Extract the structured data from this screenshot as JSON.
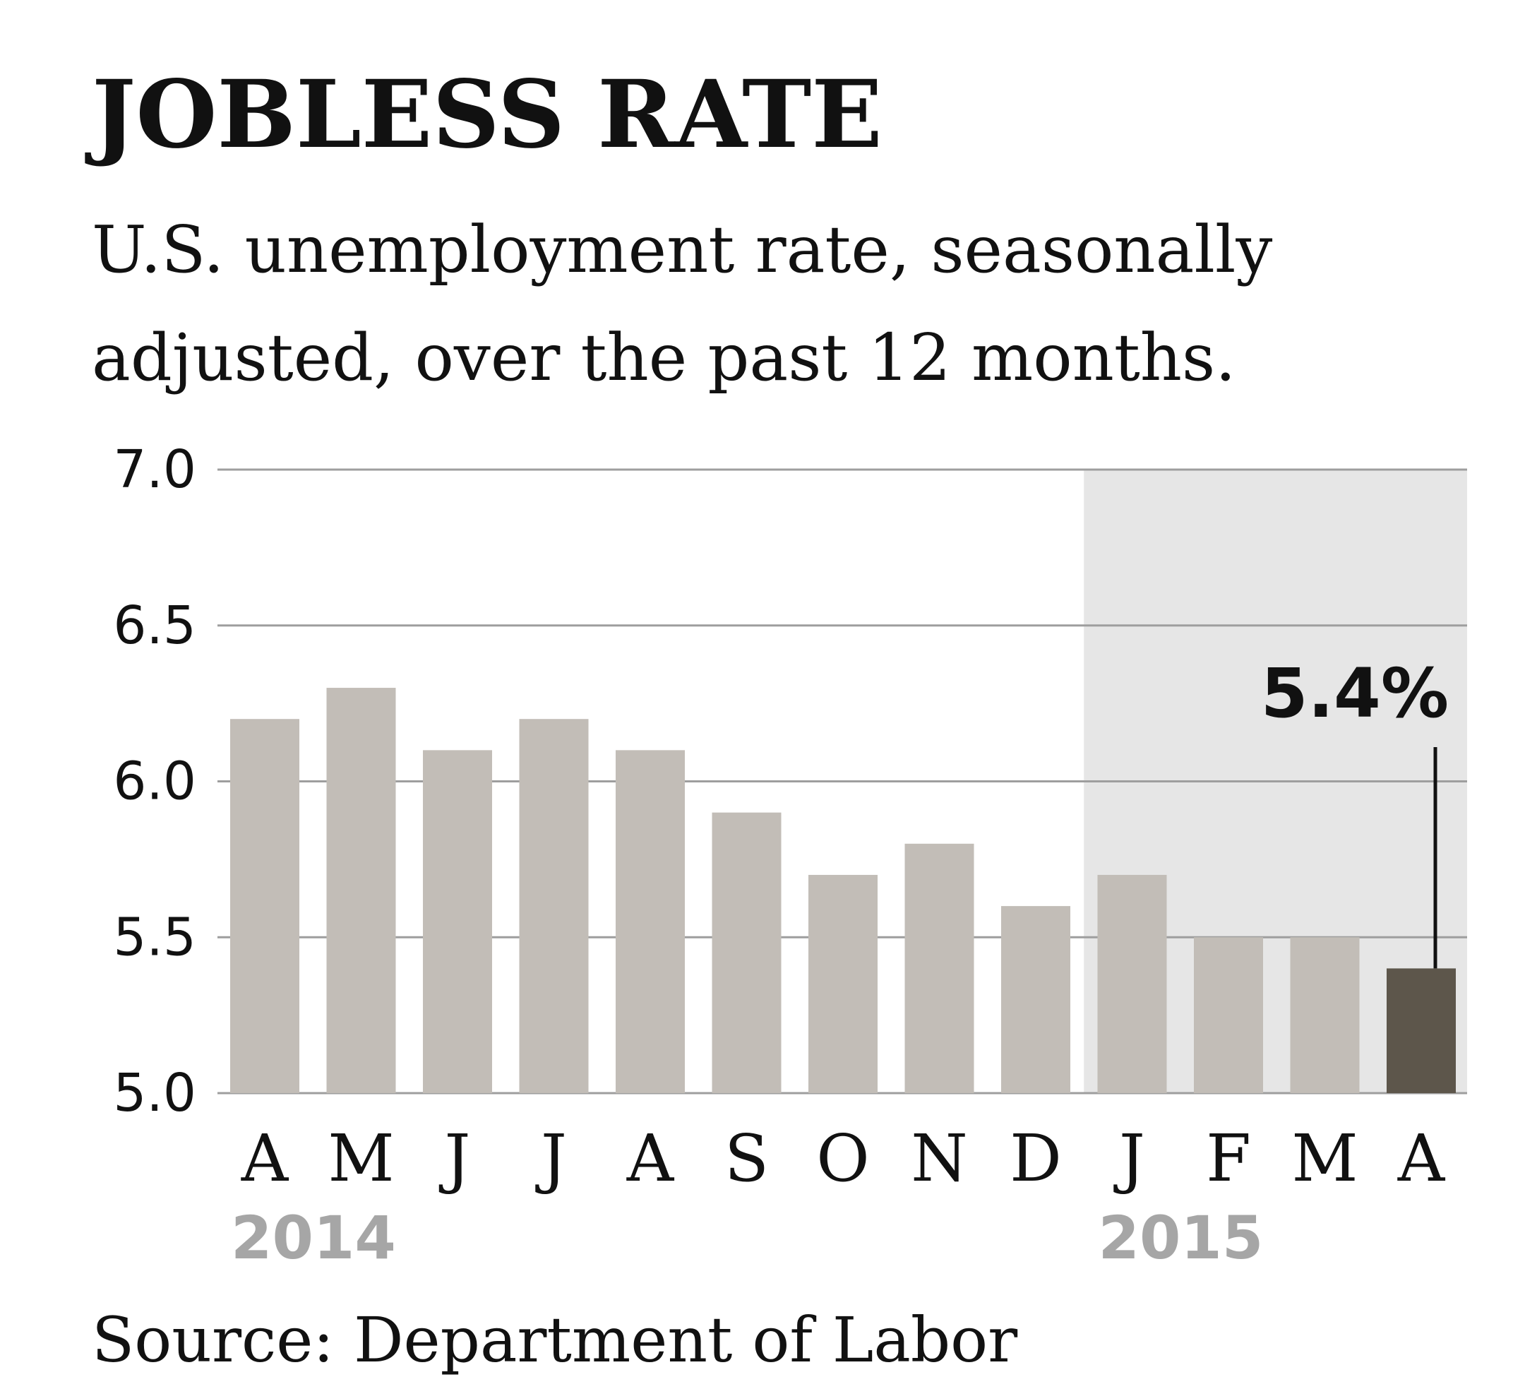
{
  "chart_data": {
    "type": "bar",
    "title": "JOBLESS RATE",
    "subtitle_lines": [
      "U.S. unemployment rate, seasonally",
      "adjusted, over the past 12 months."
    ],
    "categories": [
      "A",
      "M",
      "J",
      "J",
      "A",
      "S",
      "O",
      "N",
      "D",
      "J",
      "F",
      "M",
      "A"
    ],
    "values": [
      6.2,
      6.3,
      6.1,
      6.2,
      6.1,
      5.9,
      5.7,
      5.8,
      5.6,
      5.7,
      5.5,
      5.5,
      5.4
    ],
    "ylim": [
      5.0,
      7.0
    ],
    "yticks": [
      "7.0",
      "6.5",
      "6.0",
      "5.5",
      "5.0"
    ],
    "ytick_values": [
      7.0,
      6.5,
      6.0,
      5.5,
      5.0
    ],
    "year_labels": [
      {
        "label": "2014",
        "category_index": 0
      },
      {
        "label": "2015",
        "category_index": 9
      }
    ],
    "shaded_from_index": 9,
    "highlight_index": 12,
    "callout": "5.4%",
    "source": "Source: Department of Labor",
    "colors": {
      "bar": "#c2bdb7",
      "highlight_bar": "#5d564b",
      "shade": "#e6e6e6",
      "grid": "#9e9e9e",
      "year_label": "#a6a6a6"
    }
  }
}
